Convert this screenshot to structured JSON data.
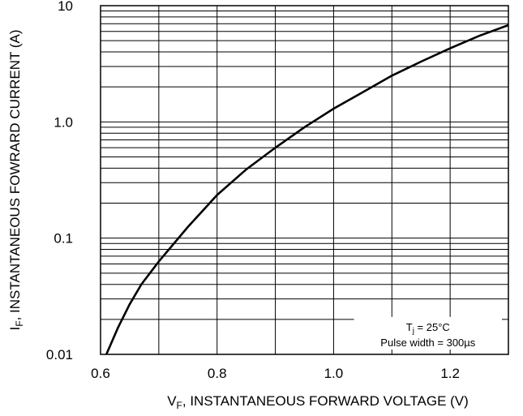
{
  "chart_data": {
    "type": "line",
    "title": "",
    "xlabel": {
      "main": "V",
      "sub": "F",
      "rest": ", INSTANTANEOUS FORWARD VOLTAGE (V)"
    },
    "ylabel": {
      "main": "I",
      "sub": "F",
      "rest": ", INSTANTANEOUS FOWRARD CURRENT (A)"
    },
    "xlim": [
      0.6,
      1.3
    ],
    "ylim": [
      0.01,
      10
    ],
    "yscale": "log",
    "grid": true,
    "x_ticks": [
      {
        "value": 0.6,
        "label": "0.6"
      },
      {
        "value": 0.8,
        "label": "0.8"
      },
      {
        "value": 1.0,
        "label": "1.0"
      },
      {
        "value": 1.2,
        "label": "1.2"
      }
    ],
    "y_ticks": [
      {
        "value": 0.01,
        "label": "0.01"
      },
      {
        "value": 0.1,
        "label": "0.1"
      },
      {
        "value": 1,
        "label": "1.0"
      },
      {
        "value": 10,
        "label": "10"
      }
    ],
    "series": [
      {
        "x": [
          0.61,
          0.63,
          0.65,
          0.67,
          0.7,
          0.75,
          0.8,
          0.85,
          0.9,
          0.95,
          1.0,
          1.05,
          1.1,
          1.15,
          1.2,
          1.25,
          1.3
        ],
        "y": [
          0.01,
          0.017,
          0.027,
          0.04,
          0.063,
          0.125,
          0.235,
          0.39,
          0.6,
          0.9,
          1.3,
          1.8,
          2.5,
          3.3,
          4.3,
          5.5,
          6.8
        ]
      }
    ],
    "annotation": {
      "line1_main": "T",
      "line1_sub": "j",
      "line1_rest": " = 25°C",
      "line2": "Pulse width = 300µs"
    }
  }
}
